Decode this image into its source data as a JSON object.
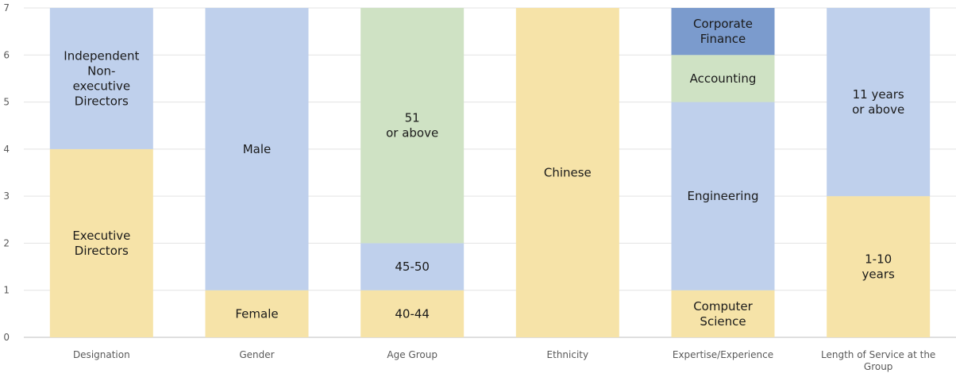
{
  "chart_data": {
    "type": "bar",
    "stacked": true,
    "title": "",
    "xlabel": "",
    "ylabel": "",
    "ylim": [
      0,
      7
    ],
    "yticks": [
      0,
      1,
      2,
      3,
      4,
      5,
      6,
      7
    ],
    "grid": true,
    "legend": "none",
    "colors": {
      "yellow": "#F6E3A8",
      "blue": "#BFD0EC",
      "green": "#CFE2C4",
      "dark_blue": "#7B9BCD"
    },
    "categories": [
      {
        "name": "Designation",
        "segments": [
          {
            "label": "Executive Directors",
            "value": 4,
            "color": "yellow"
          },
          {
            "label": "Independent Non-executive Directors",
            "value": 3,
            "color": "blue"
          }
        ]
      },
      {
        "name": "Gender",
        "segments": [
          {
            "label": "Female",
            "value": 1,
            "color": "yellow"
          },
          {
            "label": "Male",
            "value": 6,
            "color": "blue"
          }
        ]
      },
      {
        "name": "Age Group",
        "segments": [
          {
            "label": "40-44",
            "value": 1,
            "color": "yellow"
          },
          {
            "label": "45-50",
            "value": 1,
            "color": "blue"
          },
          {
            "label": "51 or above",
            "value": 5,
            "color": "green"
          }
        ]
      },
      {
        "name": "Ethnicity",
        "segments": [
          {
            "label": "Chinese",
            "value": 7,
            "color": "yellow"
          }
        ]
      },
      {
        "name": "Expertise/Experience",
        "segments": [
          {
            "label": "Computer Science",
            "value": 1,
            "color": "yellow"
          },
          {
            "label": "Engineering",
            "value": 4,
            "color": "blue"
          },
          {
            "label": "Accounting",
            "value": 1,
            "color": "green"
          },
          {
            "label": "Corporate Finance",
            "value": 1,
            "color": "dark_blue"
          }
        ]
      },
      {
        "name": "Length of Service at the Group",
        "segments": [
          {
            "label": "1-10 years",
            "value": 3,
            "color": "yellow"
          },
          {
            "label": "11 years or above",
            "value": 4,
            "color": "blue"
          }
        ]
      }
    ]
  }
}
